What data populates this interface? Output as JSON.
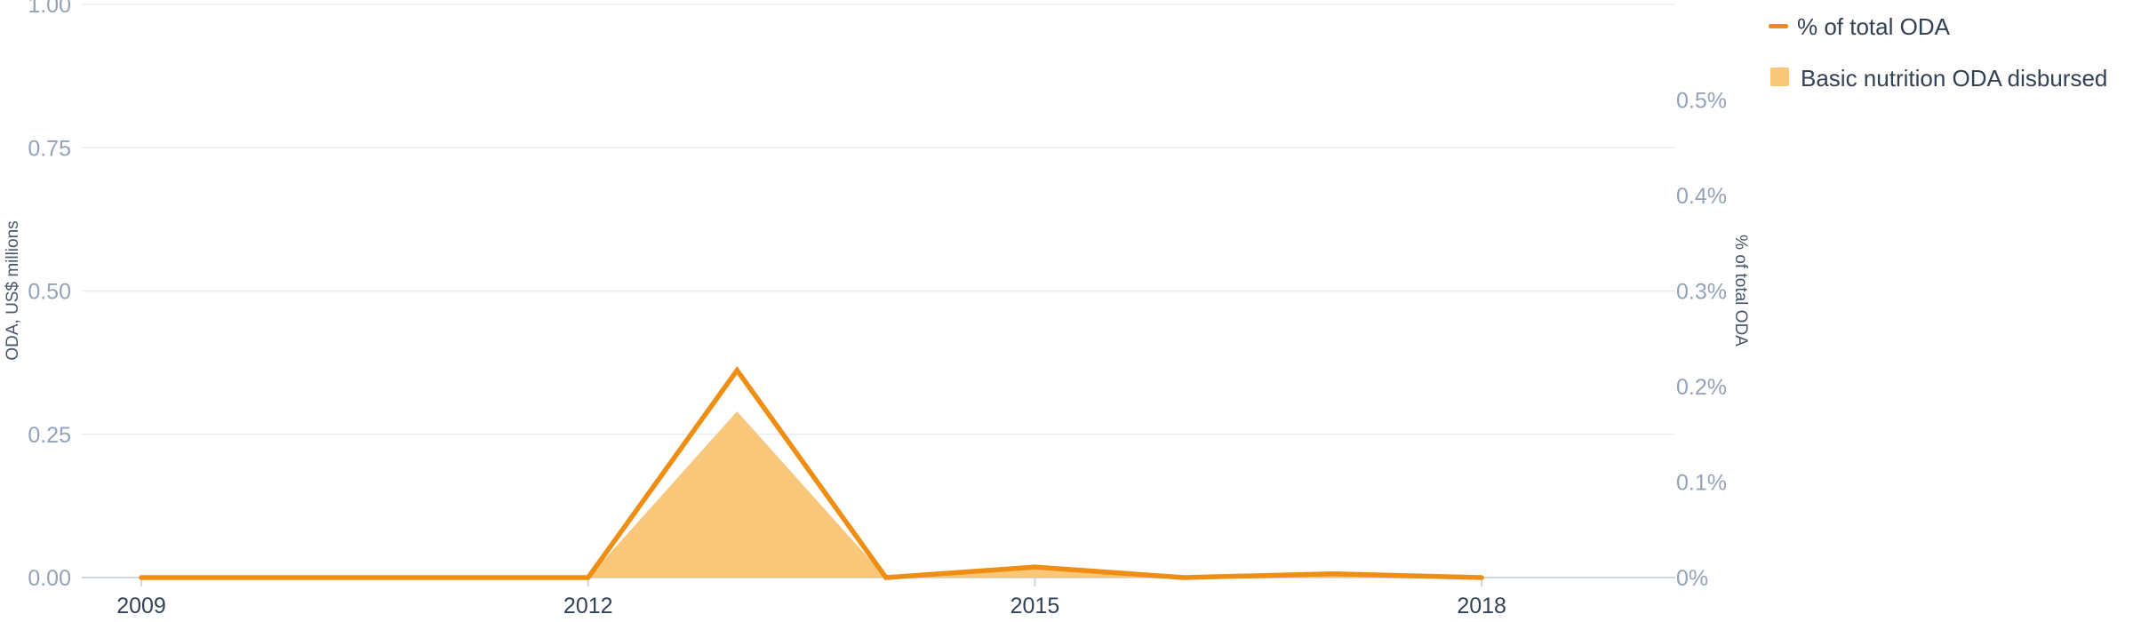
{
  "chart_data": {
    "type": "area",
    "x": [
      2009,
      2010,
      2011,
      2012,
      2013,
      2014,
      2015,
      2016,
      2017,
      2018
    ],
    "x_tick_labels": [
      "2009",
      "2012",
      "2015",
      "2018"
    ],
    "xlim": [
      2008.6,
      2019.3
    ],
    "y_left": {
      "label": "ODA, US$ millions",
      "ylim": [
        0,
        1
      ],
      "ticks": [
        "0.00",
        "0.25",
        "0.50",
        "0.75",
        "1.00"
      ],
      "tick_values": [
        0,
        0.25,
        0.5,
        0.75,
        1
      ]
    },
    "y_right": {
      "label": "% of total ODA",
      "ylim": [
        0,
        0.6
      ],
      "ticks": [
        "0%",
        "0.1%",
        "0.2%",
        "0.3%",
        "0.4%",
        "0.5%"
      ],
      "tick_values": [
        0,
        0.1,
        0.2,
        0.3,
        0.4,
        0.5
      ]
    },
    "series": [
      {
        "name": "Basic nutrition ODA disbursed",
        "type": "area",
        "axis": "left",
        "color": "#f9c77a",
        "values": [
          0,
          0,
          0,
          0,
          0.29,
          0,
          0.015,
          0,
          0.004,
          0
        ]
      },
      {
        "name": "% of total ODA",
        "type": "line",
        "axis": "right",
        "color": "#ee8f14",
        "values": [
          0,
          0,
          0,
          0,
          0.217,
          0,
          0.011,
          0,
          0.004,
          0
        ]
      }
    ],
    "grid": true,
    "legend_position": "top-right"
  }
}
